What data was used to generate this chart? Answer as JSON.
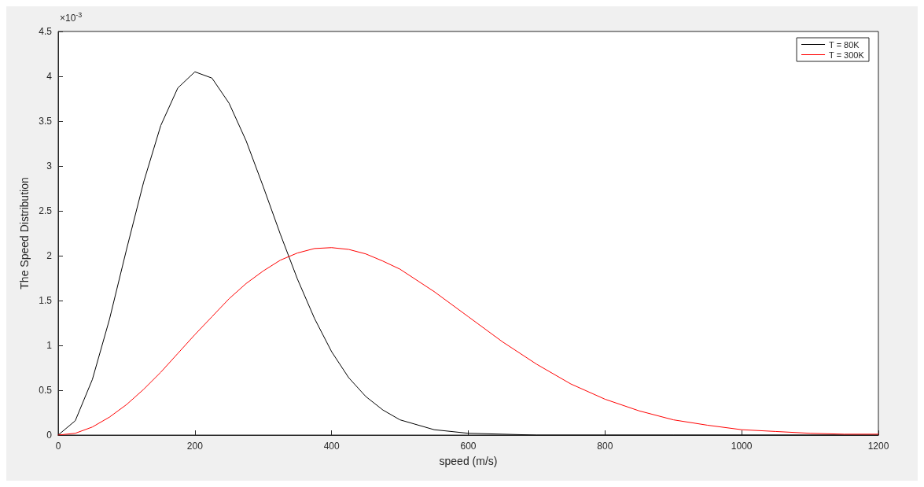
{
  "chart_data": {
    "type": "line",
    "xlabel": "speed (m/s)",
    "ylabel": "The Speed Distribution",
    "annotations": [
      "×10$^{-3}$"
    ],
    "xlim": [
      0,
      1200
    ],
    "xticks": [
      0,
      200,
      400,
      600,
      800,
      1000,
      1200
    ],
    "ylim": [
      0,
      4.5
    ],
    "yticks": [
      0,
      0.5,
      1,
      1.5,
      2,
      2.5,
      3,
      3.5,
      4,
      4.5
    ],
    "grid": false,
    "legend": "top right",
    "marker": "none",
    "line_style": "solid",
    "series": [
      {
        "name": "T = 80K",
        "color": "#000000",
        "x": [
          0,
          25,
          50,
          75,
          100,
          125,
          150,
          175,
          200,
          225,
          250,
          275,
          300,
          325,
          350,
          375,
          400,
          425,
          450,
          475,
          500,
          550,
          600,
          650,
          700,
          800,
          900,
          1000,
          1100,
          1200
        ],
        "values": [
          0,
          0.16,
          0.62,
          1.29,
          2.07,
          2.82,
          3.45,
          3.87,
          4.05,
          3.98,
          3.7,
          3.28,
          2.77,
          2.24,
          1.74,
          1.3,
          0.93,
          0.64,
          0.43,
          0.28,
          0.17,
          0.06,
          0.02,
          0.01,
          0,
          0,
          0,
          0,
          0,
          0
        ]
      },
      {
        "name": "T = 300K",
        "color": "#ff0000",
        "x": [
          0,
          25,
          50,
          75,
          100,
          125,
          150,
          175,
          200,
          225,
          250,
          275,
          300,
          325,
          350,
          375,
          400,
          425,
          450,
          475,
          500,
          550,
          600,
          650,
          700,
          750,
          800,
          850,
          900,
          950,
          1000,
          1050,
          1100,
          1150,
          1200
        ],
        "values": [
          0,
          0.02,
          0.09,
          0.2,
          0.34,
          0.51,
          0.7,
          0.91,
          1.12,
          1.32,
          1.52,
          1.69,
          1.83,
          1.95,
          2.03,
          2.08,
          2.09,
          2.07,
          2.02,
          1.94,
          1.85,
          1.6,
          1.32,
          1.04,
          0.79,
          0.57,
          0.4,
          0.27,
          0.17,
          0.11,
          0.06,
          0.04,
          0.02,
          0.01,
          0.01
        ]
      }
    ]
  }
}
